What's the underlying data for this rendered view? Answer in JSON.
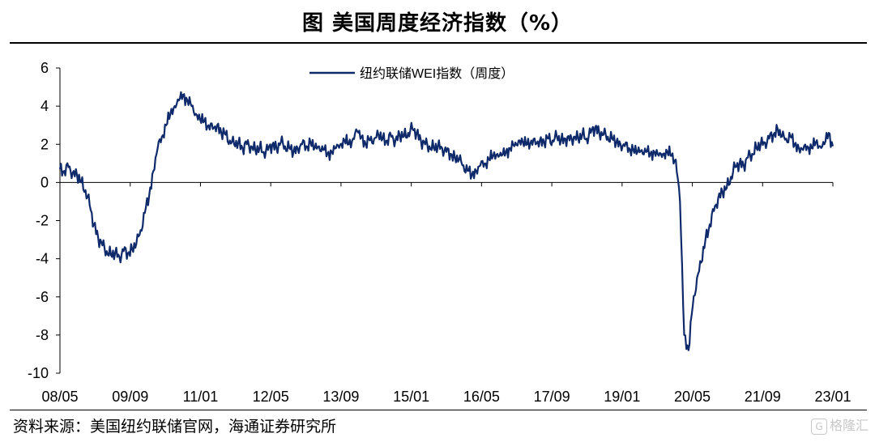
{
  "header": {
    "title": "图  美国周度经济指数（%）"
  },
  "footer": {
    "source": "资料来源：美国纽约联储官网，海通证券研究所",
    "watermark": "格隆汇",
    "watermark_mark": "G"
  },
  "chart_data": {
    "type": "line",
    "title": "图  美国周度经济指数（%）",
    "xlabel": "",
    "ylabel": "",
    "ylim": [
      -10,
      6
    ],
    "yticks": [
      6,
      4,
      2,
      0,
      -2,
      -4,
      -6,
      -8,
      -10
    ],
    "xlim": [
      "2008-01",
      "2023-03"
    ],
    "xticks": [
      "08/05",
      "09/09",
      "11/01",
      "12/05",
      "13/09",
      "15/01",
      "16/05",
      "17/09",
      "19/01",
      "20/05",
      "21/09",
      "23/01"
    ],
    "grid": false,
    "legend": "top-center",
    "series": [
      {
        "name": "纽约联储WEI指数（周度）",
        "color": "#0f2a6b",
        "points": [
          [
            "2008-01",
            0.7
          ],
          [
            "2008-02",
            0.6
          ],
          [
            "2008-03",
            0.8
          ],
          [
            "2008-04",
            0.5
          ],
          [
            "2008-05",
            0.4
          ],
          [
            "2008-06",
            0.0
          ],
          [
            "2008-07",
            -0.4
          ],
          [
            "2008-08",
            -1.2
          ],
          [
            "2008-09",
            -2.2
          ],
          [
            "2008-10",
            -2.9
          ],
          [
            "2008-11",
            -3.3
          ],
          [
            "2008-12",
            -3.6
          ],
          [
            "2009-01",
            -3.8
          ],
          [
            "2009-02",
            -3.7
          ],
          [
            "2009-03",
            -3.9
          ],
          [
            "2009-04",
            -3.6
          ],
          [
            "2009-05",
            -3.7
          ],
          [
            "2009-06",
            -3.5
          ],
          [
            "2009-07",
            -3.2
          ],
          [
            "2009-08",
            -2.5
          ],
          [
            "2009-09",
            -1.6
          ],
          [
            "2009-10",
            -0.7
          ],
          [
            "2009-11",
            0.6
          ],
          [
            "2009-12",
            1.8
          ],
          [
            "2010-01",
            2.4
          ],
          [
            "2010-02",
            3.0
          ],
          [
            "2010-03",
            3.6
          ],
          [
            "2010-04",
            4.0
          ],
          [
            "2010-05",
            4.3
          ],
          [
            "2010-06",
            4.6
          ],
          [
            "2010-07",
            4.3
          ],
          [
            "2010-08",
            4.0
          ],
          [
            "2010-09",
            3.6
          ],
          [
            "2010-10",
            3.3
          ],
          [
            "2010-11",
            3.2
          ],
          [
            "2010-12",
            3.0
          ],
          [
            "2011-01",
            2.8
          ],
          [
            "2011-02",
            3.0
          ],
          [
            "2011-03",
            2.6
          ],
          [
            "2011-04",
            2.5
          ],
          [
            "2011-05",
            2.2
          ],
          [
            "2011-06",
            2.0
          ],
          [
            "2011-07",
            2.1
          ],
          [
            "2011-08",
            1.8
          ],
          [
            "2011-09",
            2.0
          ],
          [
            "2011-10",
            1.9
          ],
          [
            "2011-11",
            1.7
          ],
          [
            "2011-12",
            1.8
          ],
          [
            "2012-01",
            1.6
          ],
          [
            "2012-02",
            1.7
          ],
          [
            "2012-03",
            2.0
          ],
          [
            "2012-04",
            1.8
          ],
          [
            "2012-05",
            2.1
          ],
          [
            "2012-06",
            1.9
          ],
          [
            "2012-07",
            1.8
          ],
          [
            "2012-08",
            1.6
          ],
          [
            "2012-09",
            1.8
          ],
          [
            "2012-10",
            2.0
          ],
          [
            "2012-11",
            1.9
          ],
          [
            "2012-12",
            2.1
          ],
          [
            "2013-01",
            1.8
          ],
          [
            "2013-02",
            1.9
          ],
          [
            "2013-03",
            1.7
          ],
          [
            "2013-04",
            1.5
          ],
          [
            "2013-05",
            1.6
          ],
          [
            "2013-06",
            1.8
          ],
          [
            "2013-07",
            2.0
          ],
          [
            "2013-08",
            2.2
          ],
          [
            "2013-09",
            2.0
          ],
          [
            "2013-10",
            2.3
          ],
          [
            "2013-11",
            2.7
          ],
          [
            "2013-12",
            2.4
          ],
          [
            "2014-01",
            2.0
          ],
          [
            "2014-02",
            2.2
          ],
          [
            "2014-03",
            2.3
          ],
          [
            "2014-04",
            2.5
          ],
          [
            "2014-05",
            2.3
          ],
          [
            "2014-06",
            2.2
          ],
          [
            "2014-07",
            2.4
          ],
          [
            "2014-08",
            2.2
          ],
          [
            "2014-09",
            2.5
          ],
          [
            "2014-10",
            2.4
          ],
          [
            "2014-11",
            2.6
          ],
          [
            "2014-12",
            2.8
          ],
          [
            "2015-01",
            2.6
          ],
          [
            "2015-02",
            2.2
          ],
          [
            "2015-03",
            2.0
          ],
          [
            "2015-04",
            1.9
          ],
          [
            "2015-05",
            1.8
          ],
          [
            "2015-06",
            1.9
          ],
          [
            "2015-07",
            1.8
          ],
          [
            "2015-08",
            1.6
          ],
          [
            "2015-09",
            1.5
          ],
          [
            "2015-10",
            1.3
          ],
          [
            "2015-11",
            1.2
          ],
          [
            "2015-12",
            0.9
          ],
          [
            "2016-01",
            0.6
          ],
          [
            "2016-02",
            0.4
          ],
          [
            "2016-03",
            0.6
          ],
          [
            "2016-04",
            0.9
          ],
          [
            "2016-05",
            1.0
          ],
          [
            "2016-06",
            1.2
          ],
          [
            "2016-07",
            1.4
          ],
          [
            "2016-08",
            1.5
          ],
          [
            "2016-09",
            1.4
          ],
          [
            "2016-10",
            1.6
          ],
          [
            "2016-11",
            1.8
          ],
          [
            "2016-12",
            1.9
          ],
          [
            "2017-01",
            2.2
          ],
          [
            "2017-02",
            2.1
          ],
          [
            "2017-03",
            2.0
          ],
          [
            "2017-04",
            2.2
          ],
          [
            "2017-05",
            2.0
          ],
          [
            "2017-06",
            2.2
          ],
          [
            "2017-07",
            2.1
          ],
          [
            "2017-08",
            2.3
          ],
          [
            "2017-09",
            2.2
          ],
          [
            "2017-10",
            2.4
          ],
          [
            "2017-11",
            2.2
          ],
          [
            "2017-12",
            2.3
          ],
          [
            "2018-01",
            2.2
          ],
          [
            "2018-02",
            2.4
          ],
          [
            "2018-03",
            2.3
          ],
          [
            "2018-04",
            2.5
          ],
          [
            "2018-05",
            2.3
          ],
          [
            "2018-06",
            2.6
          ],
          [
            "2018-07",
            2.9
          ],
          [
            "2018-08",
            2.6
          ],
          [
            "2018-09",
            2.5
          ],
          [
            "2018-10",
            2.4
          ],
          [
            "2018-11",
            2.3
          ],
          [
            "2018-12",
            2.1
          ],
          [
            "2019-01",
            2.0
          ],
          [
            "2019-02",
            1.9
          ],
          [
            "2019-03",
            1.8
          ],
          [
            "2019-04",
            1.7
          ],
          [
            "2019-05",
            1.6
          ],
          [
            "2019-06",
            1.7
          ],
          [
            "2019-07",
            1.6
          ],
          [
            "2019-08",
            1.5
          ],
          [
            "2019-09",
            1.6
          ],
          [
            "2019-10",
            1.4
          ],
          [
            "2019-11",
            1.5
          ],
          [
            "2019-12",
            1.6
          ],
          [
            "2020-01",
            1.4
          ],
          [
            "2020-02",
            1.2
          ],
          [
            "2020-03",
            -1.0
          ],
          [
            "2020-04",
            -8.0
          ],
          [
            "2020-05",
            -8.8
          ],
          [
            "2020-06",
            -6.5
          ],
          [
            "2020-07",
            -5.0
          ],
          [
            "2020-08",
            -4.2
          ],
          [
            "2020-09",
            -3.0
          ],
          [
            "2020-10",
            -2.2
          ],
          [
            "2020-11",
            -1.5
          ],
          [
            "2020-12",
            -0.8
          ],
          [
            "2021-01",
            -0.5
          ],
          [
            "2021-02",
            -0.3
          ],
          [
            "2021-03",
            0.3
          ],
          [
            "2021-04",
            0.8
          ],
          [
            "2021-05",
            1.0
          ],
          [
            "2021-06",
            0.9
          ],
          [
            "2021-07",
            1.3
          ],
          [
            "2021-08",
            1.5
          ],
          [
            "2021-09",
            1.8
          ],
          [
            "2021-10",
            2.0
          ],
          [
            "2021-11",
            2.1
          ],
          [
            "2021-12",
            2.3
          ],
          [
            "2022-01",
            2.5
          ],
          [
            "2022-02",
            2.8
          ],
          [
            "2022-03",
            2.4
          ],
          [
            "2022-04",
            2.3
          ],
          [
            "2022-05",
            2.4
          ],
          [
            "2022-06",
            2.0
          ],
          [
            "2022-07",
            1.8
          ],
          [
            "2022-08",
            1.7
          ],
          [
            "2022-09",
            1.9
          ],
          [
            "2022-10",
            1.8
          ],
          [
            "2022-11",
            2.1
          ],
          [
            "2022-12",
            1.9
          ],
          [
            "2023-01",
            2.0
          ],
          [
            "2023-02",
            2.6
          ],
          [
            "2023-03",
            1.9
          ]
        ]
      }
    ]
  }
}
